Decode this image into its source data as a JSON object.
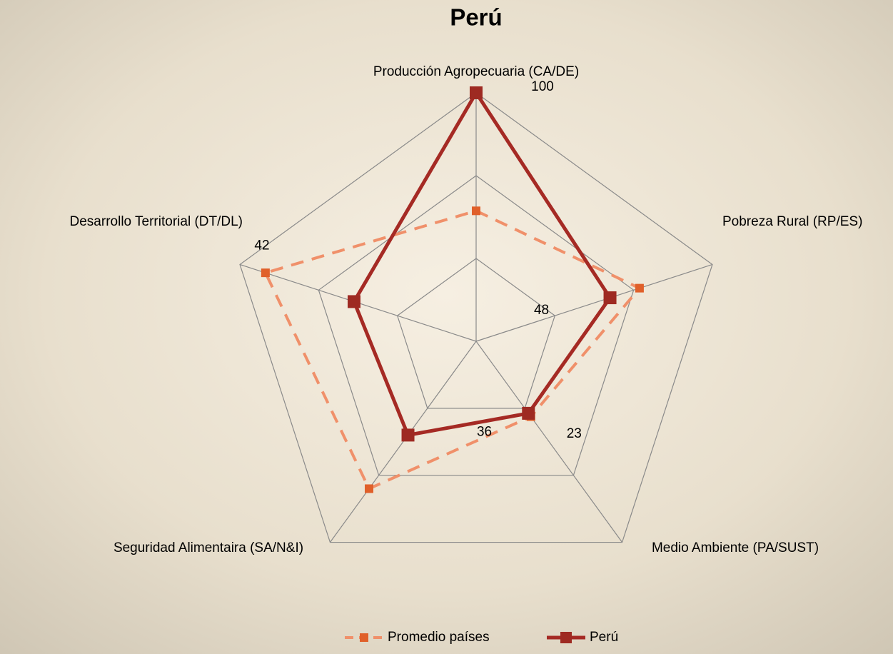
{
  "chart_data": {
    "type": "radar",
    "title": "Perú",
    "categories": [
      "Producción Agropecuaria (CA/DE)",
      "Pobreza Rural (RP/ES)",
      "Medio Ambiente (PA/SUST)",
      "Seguridad Alimentaira (SA/N&I)",
      "Desarrollo Territorial (DT/DL)"
    ],
    "series": [
      {
        "name": "Promedio países",
        "color": "#f0906a",
        "marker_color": "#e0602a",
        "line_style": "dashed",
        "values": [
          43,
          63,
          25,
          68,
          87
        ]
      },
      {
        "name": "Perú",
        "color": "#a52a24",
        "marker_color": "#9e2a22",
        "line_style": "solid",
        "values": [
          100,
          48,
          23,
          36,
          42
        ],
        "data_labels": true
      }
    ],
    "ylim": [
      -20,
      100
    ],
    "yticks": [
      -20,
      20,
      60,
      100
    ],
    "grid": true,
    "legend": "bottom"
  }
}
